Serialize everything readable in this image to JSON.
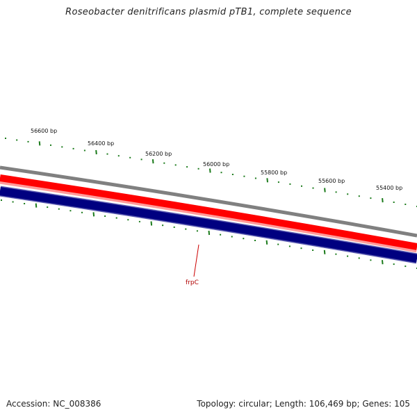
{
  "title": "Roseobacter denitrificans plasmid pTB1, complete sequence",
  "footer": {
    "accession": "Accession: NC_008386",
    "summary": "Topology: circular; Length: 106,469 bp; Genes: 105"
  },
  "scale_labels": [
    "56600 bp",
    "56400 bp",
    "56200 bp",
    "56000 bp",
    "55800 bp",
    "55600 bp",
    "55400 bp"
  ],
  "feature": {
    "name": "frpC"
  },
  "colors": {
    "backbone": "#808080",
    "forward_strand": "#ff0000",
    "forward_strand_light": "#ff9a9a",
    "reverse_strand": "#000080",
    "reverse_strand_edge": "#5a5ab0",
    "ticks": "#1a7a1a",
    "feature_label": "#b00000"
  }
}
